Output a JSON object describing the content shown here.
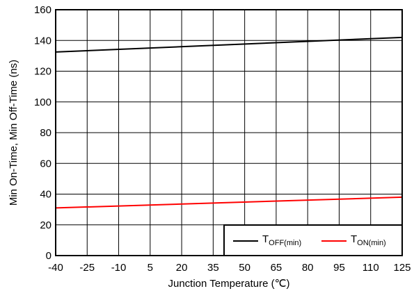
{
  "chart_data": {
    "type": "line",
    "xlabel": "Junction Temperature (℃)",
    "ylabel": "Min On-Time, Min Off-Time (ns)",
    "xlim": [
      -40,
      125
    ],
    "ylim": [
      0,
      160
    ],
    "xticks": [
      -40,
      -25,
      -10,
      5,
      20,
      35,
      50,
      65,
      80,
      95,
      110,
      125
    ],
    "yticks": [
      0,
      20,
      40,
      60,
      80,
      100,
      120,
      140,
      160
    ],
    "grid": true,
    "legend_position": "bottom-right",
    "series": [
      {
        "name": "T_OFF(min)",
        "label_main": "T",
        "label_sub": "OFF(min)",
        "color": "#000000",
        "x": [
          -40,
          125
        ],
        "y": [
          132.5,
          142
        ]
      },
      {
        "name": "T_ON(min)",
        "label_main": "T",
        "label_sub": "ON(min)",
        "color": "#ff0000",
        "x": [
          -40,
          125
        ],
        "y": [
          31,
          38
        ]
      }
    ]
  }
}
